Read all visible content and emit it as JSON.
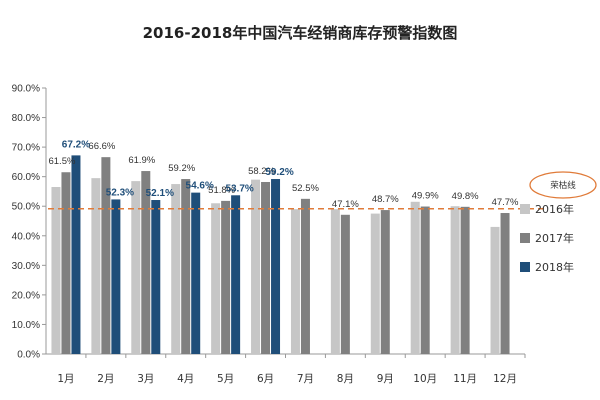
{
  "chart_data": {
    "type": "bar",
    "title": "2016-2018年中国汽车经销商库存预警指数图",
    "categories": [
      "1月",
      "2月",
      "3月",
      "4月",
      "5月",
      "6月",
      "7月",
      "8月",
      "9月",
      "10月",
      "11月",
      "12月"
    ],
    "series": [
      {
        "name": "2016年",
        "color": "#C6C6C6",
        "values": [
          56.5,
          59.5,
          58.5,
          57.5,
          51.0,
          59.0,
          49.0,
          49.0,
          47.5,
          51.5,
          50.0,
          43.0
        ]
      },
      {
        "name": "2017年",
        "color": "#808080",
        "values": [
          61.5,
          66.6,
          61.9,
          59.2,
          51.8,
          58.2,
          52.5,
          47.1,
          48.7,
          49.9,
          49.8,
          47.7
        ]
      },
      {
        "name": "2018年",
        "color": "#1F4E79",
        "values": [
          67.2,
          52.3,
          52.1,
          54.6,
          53.7,
          59.2,
          null,
          null,
          null,
          null,
          null,
          null
        ]
      }
    ],
    "data_labels": {
      "2017年": [
        "61.5%",
        "66.6%",
        "61.9%",
        "59.2%",
        "51.8%",
        "58.2%",
        "52.5%",
        "47.1%",
        "48.7%",
        "49.9%",
        "49.8%",
        "47.7%"
      ],
      "2018年": [
        "67.2%",
        "52.3%",
        "52.1%",
        "54.6%",
        "53.7%",
        "59.2%",
        "",
        "",
        "",
        "",
        "",
        ""
      ]
    },
    "y_ticks": [
      "0.0%",
      "10.0%",
      "20.0%",
      "30.0%",
      "40.0%",
      "50.0%",
      "60.0%",
      "70.0%",
      "80.0%",
      "90.0%"
    ],
    "ylim": [
      0,
      90
    ],
    "reference_line": {
      "value": 50.0,
      "label": "荣枯线",
      "color": "#E07B39"
    },
    "legend_position": "right",
    "grid": false
  }
}
